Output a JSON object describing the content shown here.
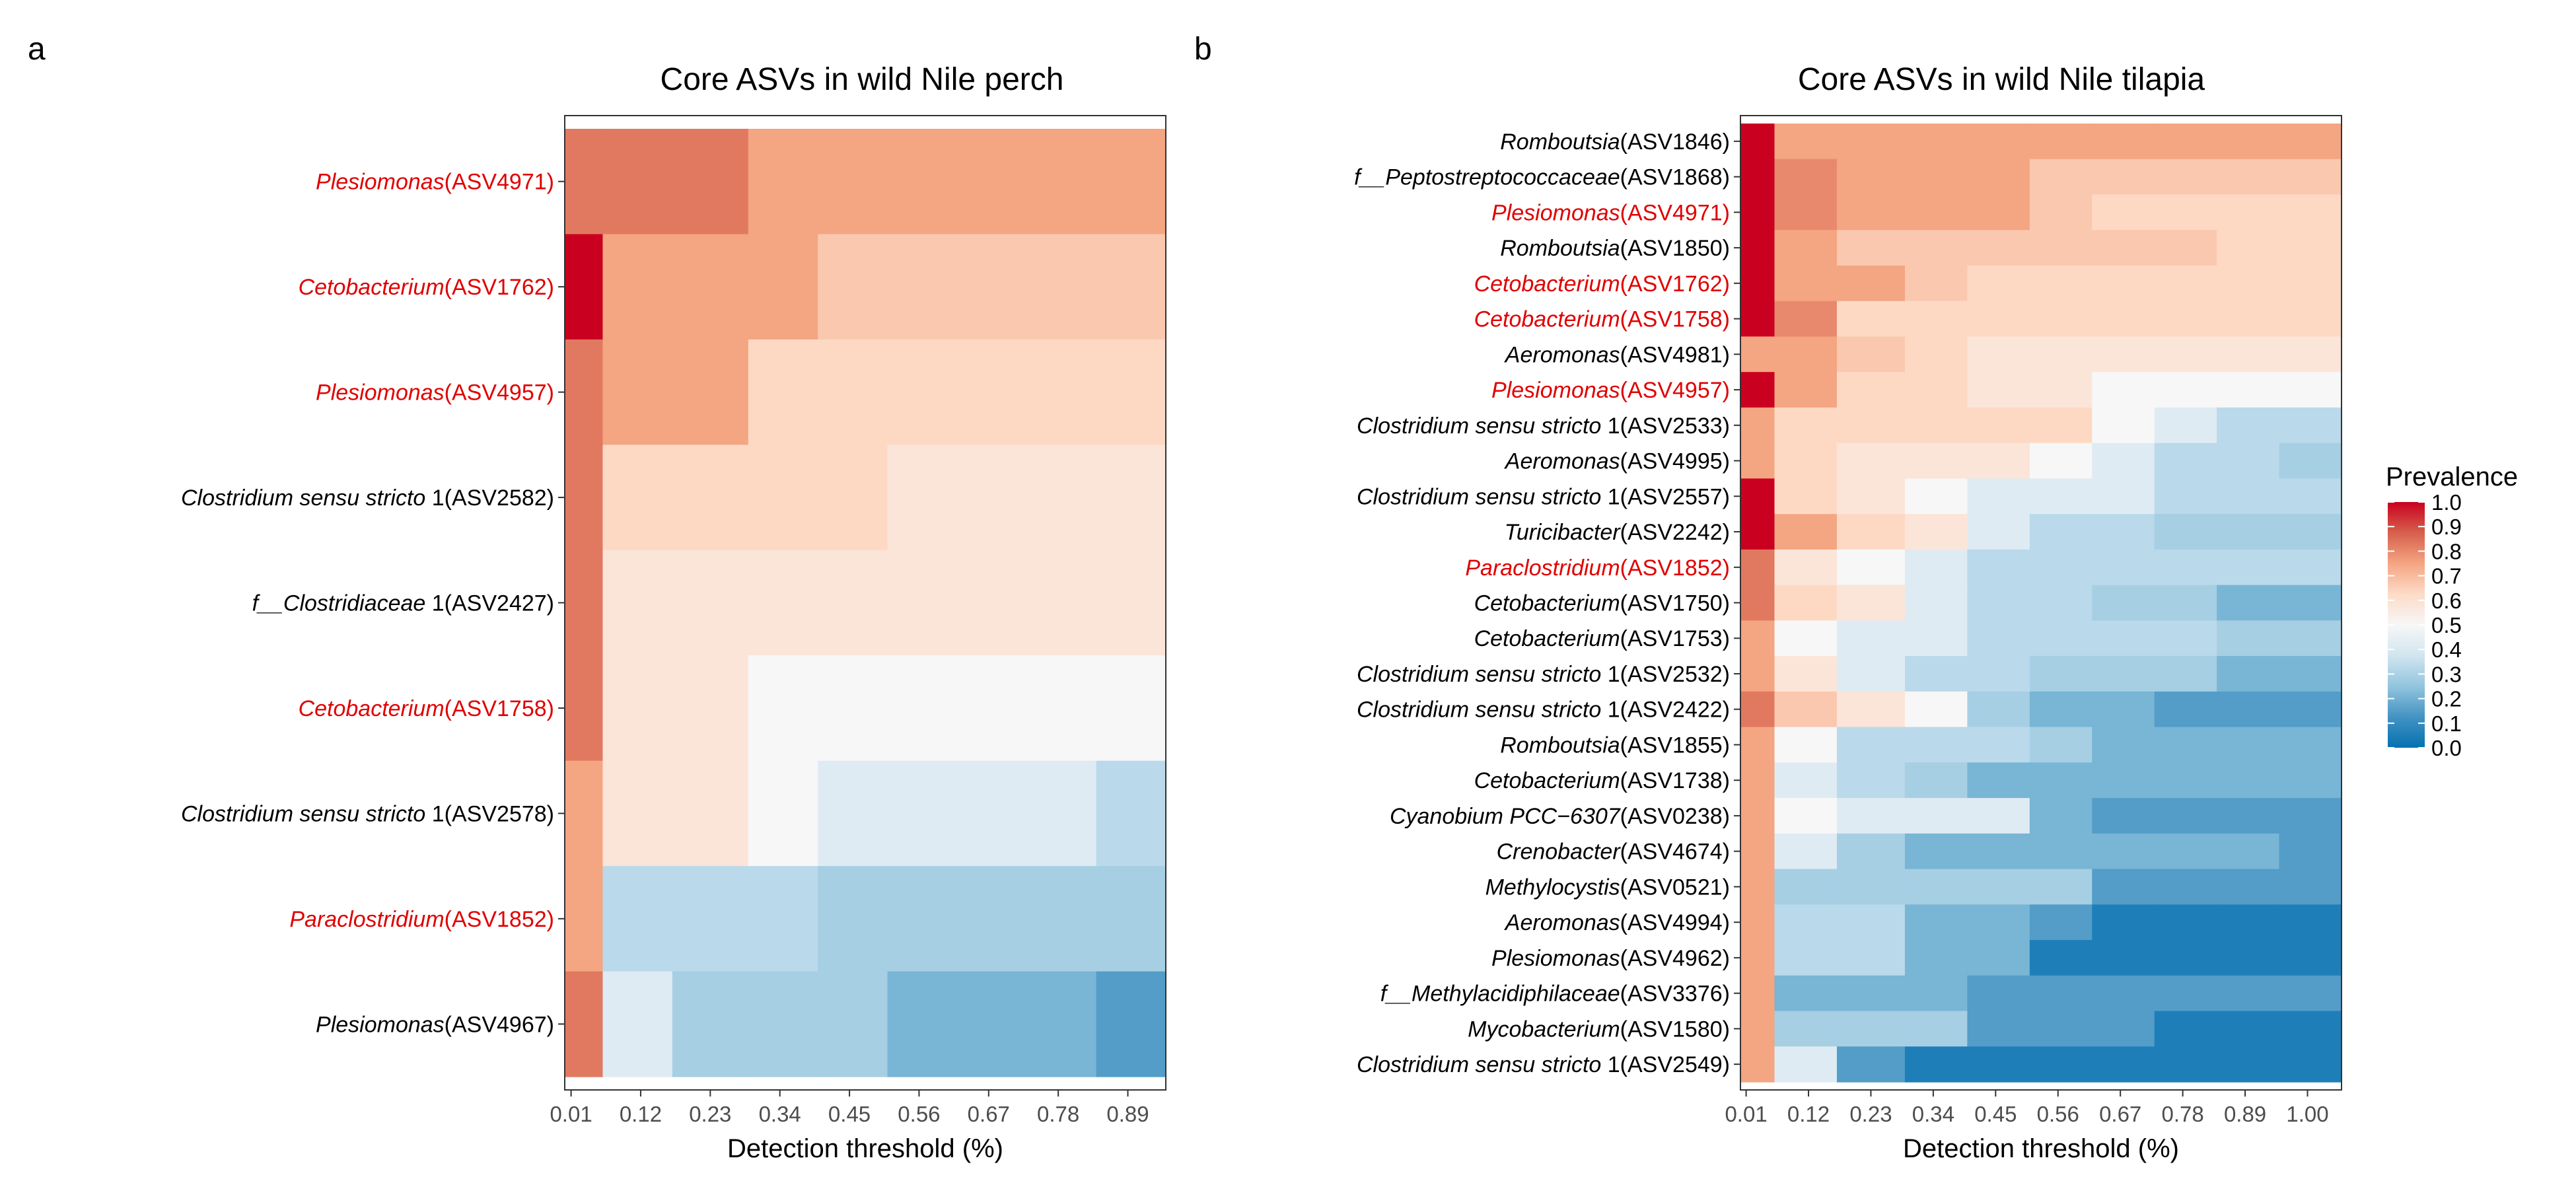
{
  "panels": [
    {
      "label": "a",
      "title": "Core ASVs in wild Nile perch",
      "xlabel": "Detection threshold (%)"
    },
    {
      "label": "b",
      "title": "Core ASVs in wild Nile tilapia",
      "xlabel": "Detection threshold (%)"
    }
  ],
  "colors": {
    "scale": [
      "#0571b0",
      "#4393c3",
      "#92c5de",
      "#d1e5f0",
      "#f7f7f7",
      "#fddbc7",
      "#f4a582",
      "#d6604d",
      "#ca0020"
    ],
    "highlight_label": "#e00000",
    "normal_label": "#000000"
  },
  "chart_data": [
    {
      "type": "heatmap",
      "title": "Core ASVs in wild Nile perch",
      "xlabel": "Detection threshold (%)",
      "ylabel": "",
      "x": [
        0.01,
        0.12,
        0.23,
        0.34,
        0.45,
        0.56,
        0.67,
        0.78,
        0.89
      ],
      "x_edges": [
        0.0,
        0.06,
        0.17,
        0.29,
        0.4,
        0.51,
        0.62,
        0.73,
        0.84,
        0.95
      ],
      "x_tick_labels": [
        "0.01",
        "0.12",
        "0.23",
        "0.34",
        "0.45",
        "0.56",
        "0.67",
        "0.78",
        "0.89"
      ],
      "rows": [
        {
          "genus": "Plesiomonas",
          "suffix": "(ASV4971)",
          "highlight": true,
          "values": [
            0.83,
            0.83,
            0.83,
            0.75,
            0.75,
            0.75,
            0.75,
            0.75,
            0.75
          ]
        },
        {
          "genus": "Cetobacterium",
          "suffix": "(ASV1762)",
          "highlight": true,
          "values": [
            1.0,
            0.75,
            0.75,
            0.75,
            0.67,
            0.67,
            0.67,
            0.67,
            0.67
          ]
        },
        {
          "genus": "Plesiomonas",
          "suffix": "(ASV4957)",
          "highlight": true,
          "values": [
            0.83,
            0.75,
            0.75,
            0.63,
            0.63,
            0.63,
            0.63,
            0.63,
            0.63
          ]
        },
        {
          "genus": "Clostridium sensu stricto",
          "suffix": " 1(ASV2582)",
          "highlight": false,
          "values": [
            0.83,
            0.63,
            0.63,
            0.63,
            0.63,
            0.58,
            0.58,
            0.58,
            0.58
          ]
        },
        {
          "genus": "f__Clostridiaceae",
          "suffix": " 1(ASV2427)",
          "highlight": false,
          "values": [
            0.83,
            0.58,
            0.58,
            0.58,
            0.58,
            0.58,
            0.58,
            0.58,
            0.58
          ]
        },
        {
          "genus": "Cetobacterium",
          "suffix": "(ASV1758)",
          "highlight": true,
          "values": [
            0.83,
            0.58,
            0.58,
            0.5,
            0.5,
            0.5,
            0.5,
            0.5,
            0.5
          ]
        },
        {
          "genus": "Clostridium sensu stricto",
          "suffix": " 1(ASV2578)",
          "highlight": false,
          "values": [
            0.75,
            0.58,
            0.58,
            0.5,
            0.42,
            0.42,
            0.42,
            0.42,
            0.33
          ]
        },
        {
          "genus": "Paraclostridium",
          "suffix": "(ASV1852)",
          "highlight": true,
          "values": [
            0.75,
            0.33,
            0.33,
            0.33,
            0.29,
            0.29,
            0.29,
            0.29,
            0.29
          ]
        },
        {
          "genus": "Plesiomonas",
          "suffix": "(ASV4967)",
          "highlight": false,
          "values": [
            0.83,
            0.42,
            0.29,
            0.29,
            0.29,
            0.21,
            0.21,
            0.21,
            0.15
          ]
        }
      ]
    },
    {
      "type": "heatmap",
      "title": "Core ASVs in wild Nile tilapia",
      "xlabel": "Detection threshold (%)",
      "ylabel": "",
      "x": [
        0.01,
        0.12,
        0.23,
        0.34,
        0.45,
        0.56,
        0.67,
        0.78,
        0.89,
        1.0
      ],
      "x_edges": [
        0.0,
        0.06,
        0.17,
        0.29,
        0.4,
        0.51,
        0.62,
        0.73,
        0.84,
        0.95,
        1.06
      ],
      "x_tick_labels": [
        "0.01",
        "0.12",
        "0.23",
        "0.34",
        "0.45",
        "0.56",
        "0.67",
        "0.78",
        "0.89",
        "1.00"
      ],
      "rows": [
        {
          "genus": "Romboutsia",
          "suffix": "(ASV1846)",
          "highlight": false,
          "values": [
            1.0,
            0.75,
            0.75,
            0.75,
            0.75,
            0.75,
            0.75,
            0.75,
            0.75,
            0.75
          ]
        },
        {
          "genus": "f__Peptostreptococcaceae",
          "suffix": "(ASV1868)",
          "highlight": false,
          "values": [
            1.0,
            0.8,
            0.75,
            0.75,
            0.75,
            0.67,
            0.67,
            0.67,
            0.67,
            0.67
          ]
        },
        {
          "genus": "Plesiomonas",
          "suffix": "(ASV4971)",
          "highlight": true,
          "values": [
            1.0,
            0.8,
            0.75,
            0.75,
            0.75,
            0.67,
            0.63,
            0.63,
            0.63,
            0.63
          ]
        },
        {
          "genus": "Romboutsia",
          "suffix": "(ASV1850)",
          "highlight": false,
          "values": [
            1.0,
            0.75,
            0.67,
            0.67,
            0.67,
            0.67,
            0.67,
            0.67,
            0.63,
            0.63
          ]
        },
        {
          "genus": "Cetobacterium",
          "suffix": "(ASV1762)",
          "highlight": true,
          "values": [
            1.0,
            0.75,
            0.75,
            0.67,
            0.63,
            0.63,
            0.63,
            0.63,
            0.63,
            0.63
          ]
        },
        {
          "genus": "Cetobacterium",
          "suffix": "(ASV1758)",
          "highlight": true,
          "values": [
            1.0,
            0.8,
            0.63,
            0.63,
            0.63,
            0.63,
            0.63,
            0.63,
            0.63,
            0.63
          ]
        },
        {
          "genus": "Aeromonas",
          "suffix": "(ASV4981)",
          "highlight": false,
          "values": [
            0.75,
            0.75,
            0.67,
            0.63,
            0.58,
            0.58,
            0.58,
            0.58,
            0.58,
            0.58
          ]
        },
        {
          "genus": "Plesiomonas",
          "suffix": "(ASV4957)",
          "highlight": true,
          "values": [
            1.0,
            0.75,
            0.63,
            0.63,
            0.58,
            0.58,
            0.5,
            0.5,
            0.5,
            0.5
          ]
        },
        {
          "genus": "Clostridium sensu stricto",
          "suffix": " 1(ASV2533)",
          "highlight": false,
          "values": [
            0.75,
            0.63,
            0.63,
            0.63,
            0.63,
            0.63,
            0.5,
            0.42,
            0.33,
            0.33
          ]
        },
        {
          "genus": "Aeromonas",
          "suffix": "(ASV4995)",
          "highlight": false,
          "values": [
            0.75,
            0.63,
            0.58,
            0.58,
            0.58,
            0.5,
            0.42,
            0.33,
            0.33,
            0.29
          ]
        },
        {
          "genus": "Clostridium sensu stricto",
          "suffix": " 1(ASV2557)",
          "highlight": false,
          "values": [
            1.0,
            0.63,
            0.58,
            0.5,
            0.42,
            0.42,
            0.42,
            0.33,
            0.33,
            0.33
          ]
        },
        {
          "genus": "Turicibacter",
          "suffix": "(ASV2242)",
          "highlight": false,
          "values": [
            1.0,
            0.75,
            0.63,
            0.58,
            0.42,
            0.33,
            0.33,
            0.29,
            0.29,
            0.29
          ]
        },
        {
          "genus": "Paraclostridium",
          "suffix": "(ASV1852)",
          "highlight": true,
          "values": [
            0.83,
            0.58,
            0.5,
            0.42,
            0.33,
            0.33,
            0.33,
            0.33,
            0.33,
            0.33
          ]
        },
        {
          "genus": "Cetobacterium",
          "suffix": "(ASV1750)",
          "highlight": false,
          "values": [
            0.83,
            0.63,
            0.58,
            0.42,
            0.33,
            0.33,
            0.29,
            0.29,
            0.21,
            0.21
          ]
        },
        {
          "genus": "Cetobacterium",
          "suffix": "(ASV1753)",
          "highlight": false,
          "values": [
            0.75,
            0.5,
            0.42,
            0.42,
            0.33,
            0.33,
            0.33,
            0.33,
            0.29,
            0.29
          ]
        },
        {
          "genus": "Clostridium sensu stricto",
          "suffix": " 1(ASV2532)",
          "highlight": false,
          "values": [
            0.75,
            0.58,
            0.42,
            0.33,
            0.33,
            0.29,
            0.29,
            0.29,
            0.21,
            0.21
          ]
        },
        {
          "genus": "Clostridium sensu stricto",
          "suffix": " 1(ASV2422)",
          "highlight": false,
          "values": [
            0.83,
            0.67,
            0.58,
            0.5,
            0.29,
            0.21,
            0.21,
            0.15,
            0.15,
            0.15
          ]
        },
        {
          "genus": "Romboutsia",
          "suffix": "(ASV1855)",
          "highlight": false,
          "values": [
            0.75,
            0.5,
            0.33,
            0.33,
            0.33,
            0.29,
            0.21,
            0.21,
            0.21,
            0.21
          ]
        },
        {
          "genus": "Cetobacterium",
          "suffix": "(ASV1738)",
          "highlight": false,
          "values": [
            0.75,
            0.42,
            0.33,
            0.29,
            0.21,
            0.21,
            0.21,
            0.21,
            0.21,
            0.21
          ]
        },
        {
          "genus": "Cyanobium PCC−6307",
          "suffix": "(ASV0238)",
          "highlight": false,
          "values": [
            0.75,
            0.5,
            0.42,
            0.42,
            0.42,
            0.21,
            0.15,
            0.15,
            0.15,
            0.15
          ]
        },
        {
          "genus": "Crenobacter",
          "suffix": "(ASV4674)",
          "highlight": false,
          "values": [
            0.75,
            0.42,
            0.29,
            0.21,
            0.21,
            0.21,
            0.21,
            0.21,
            0.21,
            0.15
          ]
        },
        {
          "genus": "Methylocystis",
          "suffix": "(ASV0521)",
          "highlight": false,
          "values": [
            0.75,
            0.29,
            0.29,
            0.29,
            0.29,
            0.29,
            0.15,
            0.15,
            0.15,
            0.15
          ]
        },
        {
          "genus": "Aeromonas",
          "suffix": "(ASV4994)",
          "highlight": false,
          "values": [
            0.75,
            0.33,
            0.33,
            0.21,
            0.21,
            0.15,
            0.05,
            0.05,
            0.05,
            0.05
          ]
        },
        {
          "genus": "Plesiomonas",
          "suffix": "(ASV4962)",
          "highlight": false,
          "values": [
            0.75,
            0.33,
            0.33,
            0.21,
            0.21,
            0.05,
            0.05,
            0.05,
            0.05,
            0.05
          ]
        },
        {
          "genus": "f__Methylacidiphilaceae",
          "suffix": "(ASV3376)",
          "highlight": false,
          "values": [
            0.75,
            0.21,
            0.21,
            0.21,
            0.15,
            0.15,
            0.15,
            0.15,
            0.15,
            0.15
          ]
        },
        {
          "genus": "Mycobacterium",
          "suffix": "(ASV1580)",
          "highlight": false,
          "values": [
            0.75,
            0.29,
            0.29,
            0.29,
            0.15,
            0.15,
            0.15,
            0.05,
            0.05,
            0.05
          ]
        },
        {
          "genus": "Clostridium sensu stricto",
          "suffix": " 1(ASV2549)",
          "highlight": false,
          "values": [
            0.75,
            0.42,
            0.15,
            0.05,
            0.05,
            0.05,
            0.05,
            0.05,
            0.05,
            0.05
          ]
        }
      ]
    }
  ],
  "legend": {
    "title": "Prevalence",
    "range": [
      0,
      1
    ],
    "ticks": [
      "1.0",
      "0.9",
      "0.8",
      "0.7",
      "0.6",
      "0.5",
      "0.4",
      "0.3",
      "0.2",
      "0.1",
      "0.0"
    ]
  }
}
